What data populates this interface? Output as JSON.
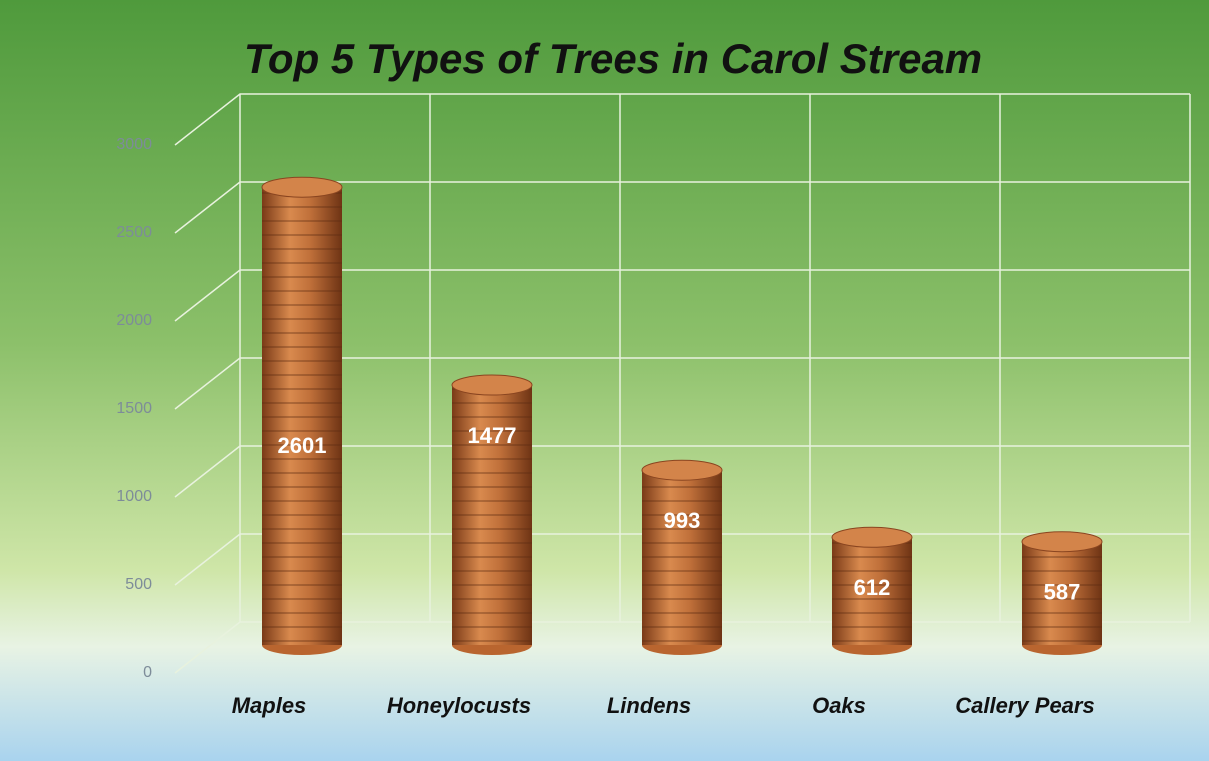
{
  "chart_data": {
    "type": "bar",
    "title": "Top 5 Types of Trees in Carol Stream",
    "categories": [
      "Maples",
      "Honeylocusts",
      "Lindens",
      "Oaks",
      "Callery Pears"
    ],
    "values": [
      2601,
      1477,
      993,
      612,
      587
    ],
    "color": "#b9652f",
    "ylim": [
      0,
      3000
    ],
    "yticks": [
      0,
      500,
      1000,
      1500,
      2000,
      2500,
      3000
    ],
    "grid": true
  }
}
